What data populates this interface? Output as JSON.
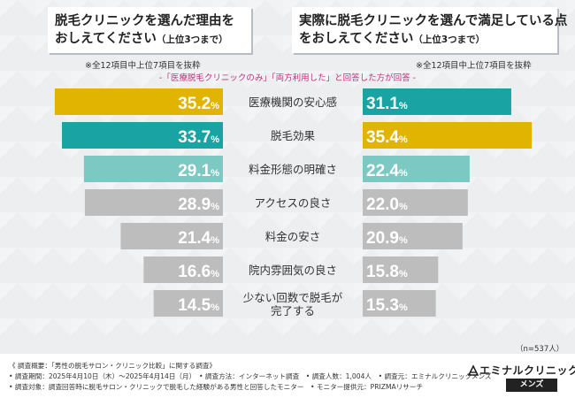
{
  "titles": {
    "left_line1": "脱毛クリニックを選んだ理由を",
    "left_line2": "おしえてください",
    "left_line2_small": "（上位3つまで）",
    "right_line1": "実際に脱毛クリニックを選んで満足している点",
    "right_line2": "をおしえてください",
    "right_line2_small": "（上位3つまで）"
  },
  "notes": {
    "left": "※全12項目中上位7項目を抜粋",
    "right": "※全12項目中上位7項目を抜粋"
  },
  "subtitle": "-「医療脱毛クリニックのみ」「両方利用した」と回答した方が回答 -",
  "sample_size": "（n=537人）",
  "colors": {
    "rank1": "#e0b400",
    "rank2": "#1aa3a3",
    "rank3": "#7cc9c4",
    "other": "#bdbdbd"
  },
  "chart_data": {
    "type": "bar",
    "orientation": "horizontal-mirrored",
    "unit": "%",
    "categories": [
      "医療機関の安心感",
      "脱毛効果",
      "料金形態の明確さ",
      "アクセスの良さ",
      "料金の安さ",
      "院内雰囲気の良さ",
      "少ない回数で脱毛が完了する"
    ],
    "category_lines": [
      [
        "医療機関の安心感"
      ],
      [
        "脱毛効果"
      ],
      [
        "料金形態の明確さ"
      ],
      [
        "アクセスの良さ"
      ],
      [
        "料金の安さ"
      ],
      [
        "院内雰囲気の良さ"
      ],
      [
        "少ない回数で脱毛が",
        "完了する"
      ]
    ],
    "series": [
      {
        "name": "脱毛クリニックを選んだ理由",
        "side": "left",
        "values": [
          35.2,
          33.7,
          29.1,
          28.9,
          21.4,
          16.6,
          14.5
        ],
        "labels": [
          "35.2",
          "33.7",
          "29.1",
          "28.9",
          "21.4",
          "16.6",
          "14.5"
        ],
        "ranks": [
          1,
          2,
          3,
          0,
          0,
          0,
          0
        ]
      },
      {
        "name": "満足している点",
        "side": "right",
        "values": [
          31.1,
          35.4,
          22.4,
          22.0,
          20.9,
          15.8,
          15.3
        ],
        "labels": [
          "31.1",
          "35.4",
          "22.4",
          "22.0",
          "20.9",
          "15.8",
          "15.3"
        ],
        "ranks": [
          2,
          1,
          3,
          0,
          0,
          0,
          0
        ]
      }
    ],
    "percent_sign": "%"
  },
  "footer": {
    "line1": "《 調査概要：「男性の脱毛サロン・クリニック比較」に関する調査》",
    "line2": "• 調査期間：2025年4月10日（木）～2025年4月14日（月）　• 調査方法：インターネット調査　• 調査人数：1,004人　• 調査元：エミナルクリニックメンズ",
    "line3": "• 調査対象：調査回答時に脱毛サロン・クリニックで脱毛した経験がある男性と回答したモニター　• モニター提供元：PRIZMAリサーチ"
  },
  "logo": {
    "name": "エミナルクリニック",
    "sub": "メンズ"
  }
}
